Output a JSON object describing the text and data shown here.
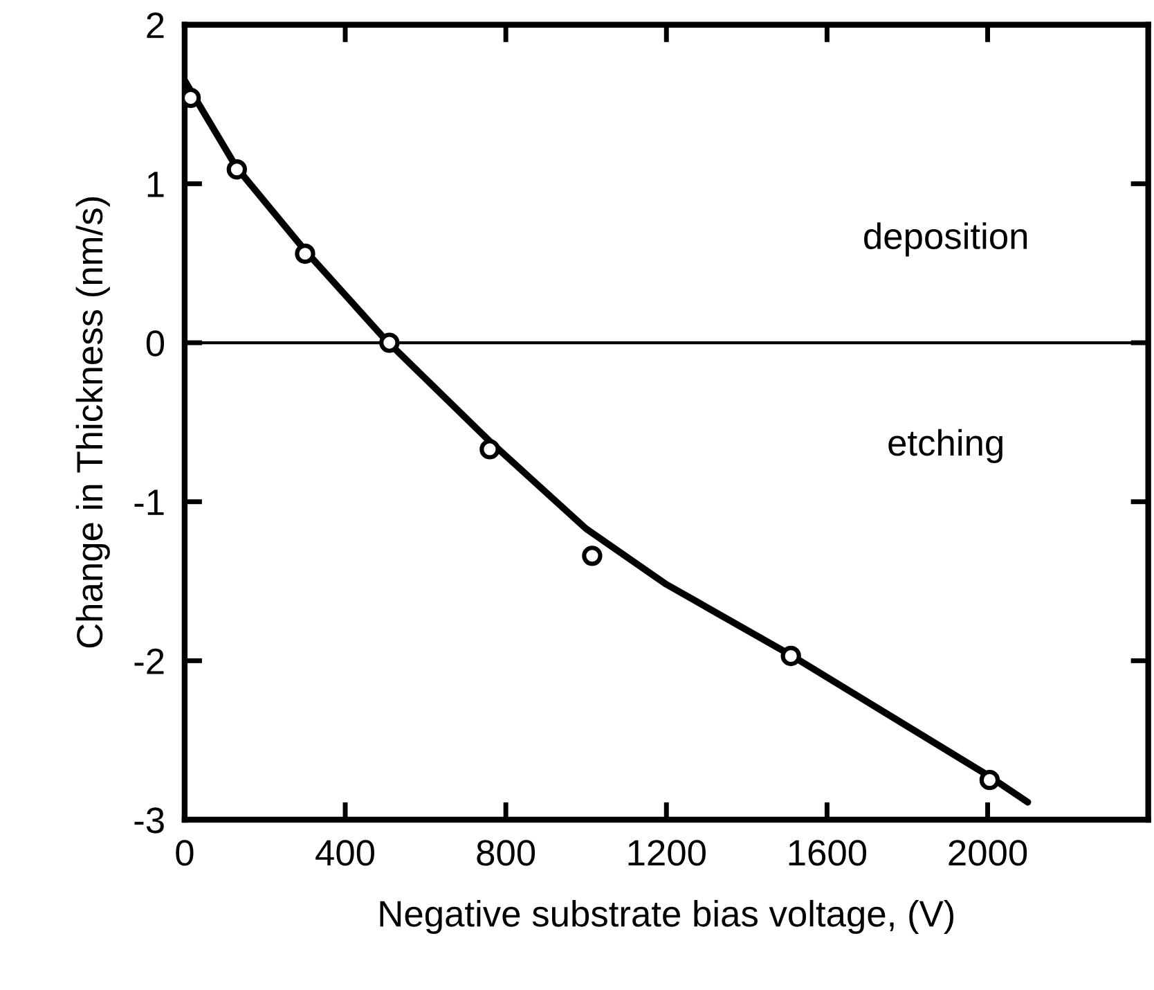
{
  "chart_data": {
    "type": "scatter",
    "xlabel": "Negative substrate bias voltage, (V)",
    "ylabel": "Change in Thickness (nm/s)",
    "x": [
      15,
      130,
      300,
      510,
      760,
      1015,
      1510,
      2005
    ],
    "series": [
      {
        "color": "#000000",
        "marker": "circle",
        "values": [
          1.54,
          1.09,
          0.56,
          0.0,
          -0.67,
          -1.34,
          -1.97,
          -2.75
        ]
      },
      {
        "type": "line",
        "color": "#000000",
        "marker": "none",
        "x": [
          0,
          130,
          300,
          500,
          760,
          1000,
          1200,
          1500,
          2000,
          2100
        ],
        "values": [
          1.65,
          1.1,
          0.58,
          0.02,
          -0.62,
          -1.17,
          -1.52,
          -1.95,
          -2.72,
          -2.89
        ]
      }
    ],
    "xlim": [
      0,
      2400
    ],
    "xticks": [
      0,
      400,
      800,
      1200,
      1600,
      2000
    ],
    "ylim": [
      -3,
      2
    ],
    "yticks": [
      -3,
      -2,
      -1,
      0,
      1,
      2
    ],
    "ref_lines": [
      {
        "axis": "y",
        "value": 0,
        "color": "#000000"
      }
    ],
    "annotations": [
      "deposition",
      "etching"
    ],
    "grid": false,
    "legend": false
  }
}
